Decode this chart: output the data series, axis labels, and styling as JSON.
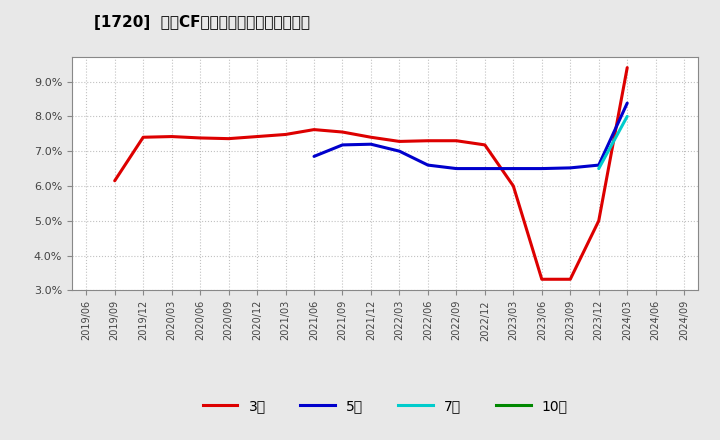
{
  "title": "[1720]  営業CFマージンの標準偏差の推移",
  "ylim": [
    0.03,
    0.097
  ],
  "yticks": [
    0.03,
    0.04,
    0.05,
    0.06,
    0.07,
    0.08,
    0.09
  ],
  "background_color": "#e8e8e8",
  "plot_bg_color": "#ffffff",
  "grid_color": "#999999",
  "series": {
    "3年": {
      "color": "#dd0000",
      "data": [
        [
          "2019/06",
          null
        ],
        [
          "2019/09",
          0.0615
        ],
        [
          "2019/12",
          0.074
        ],
        [
          "2020/03",
          0.0742
        ],
        [
          "2020/06",
          0.0738
        ],
        [
          "2020/09",
          0.0736
        ],
        [
          "2020/12",
          0.0742
        ],
        [
          "2021/03",
          0.0748
        ],
        [
          "2021/06",
          0.0762
        ],
        [
          "2021/09",
          0.0755
        ],
        [
          "2021/12",
          0.074
        ],
        [
          "2022/03",
          0.0728
        ],
        [
          "2022/06",
          0.073
        ],
        [
          "2022/09",
          0.073
        ],
        [
          "2022/12",
          0.0718
        ],
        [
          "2023/03",
          0.06
        ],
        [
          "2023/06",
          0.0332
        ],
        [
          "2023/09",
          0.0332
        ],
        [
          "2023/12",
          0.05
        ],
        [
          "2024/03",
          0.094
        ],
        [
          "2024/06",
          null
        ],
        [
          "2024/09",
          null
        ]
      ]
    },
    "5年": {
      "color": "#0000cc",
      "data": [
        [
          "2019/06",
          null
        ],
        [
          "2019/09",
          null
        ],
        [
          "2019/12",
          null
        ],
        [
          "2020/03",
          null
        ],
        [
          "2020/06",
          null
        ],
        [
          "2020/09",
          null
        ],
        [
          "2020/12",
          null
        ],
        [
          "2021/03",
          null
        ],
        [
          "2021/06",
          0.0685
        ],
        [
          "2021/09",
          0.0718
        ],
        [
          "2021/12",
          0.072
        ],
        [
          "2022/03",
          0.07
        ],
        [
          "2022/06",
          0.066
        ],
        [
          "2022/09",
          0.065
        ],
        [
          "2022/12",
          0.065
        ],
        [
          "2023/03",
          0.065
        ],
        [
          "2023/06",
          0.065
        ],
        [
          "2023/09",
          0.0652
        ],
        [
          "2023/12",
          0.066
        ],
        [
          "2024/03",
          0.0838
        ],
        [
          "2024/06",
          null
        ],
        [
          "2024/09",
          null
        ]
      ]
    },
    "7年": {
      "color": "#00cccc",
      "data": [
        [
          "2019/06",
          null
        ],
        [
          "2019/09",
          null
        ],
        [
          "2019/12",
          null
        ],
        [
          "2020/03",
          null
        ],
        [
          "2020/06",
          null
        ],
        [
          "2020/09",
          null
        ],
        [
          "2020/12",
          null
        ],
        [
          "2021/03",
          null
        ],
        [
          "2021/06",
          null
        ],
        [
          "2021/09",
          null
        ],
        [
          "2021/12",
          null
        ],
        [
          "2022/03",
          null
        ],
        [
          "2022/06",
          null
        ],
        [
          "2022/09",
          null
        ],
        [
          "2022/12",
          null
        ],
        [
          "2023/03",
          null
        ],
        [
          "2023/06",
          null
        ],
        [
          "2023/09",
          null
        ],
        [
          "2023/12",
          0.065
        ],
        [
          "2024/03",
          0.08
        ],
        [
          "2024/06",
          null
        ],
        [
          "2024/09",
          null
        ]
      ]
    },
    "10年": {
      "color": "#008800",
      "data": [
        [
          "2019/06",
          null
        ],
        [
          "2019/09",
          null
        ],
        [
          "2019/12",
          null
        ],
        [
          "2020/03",
          null
        ],
        [
          "2020/06",
          null
        ],
        [
          "2020/09",
          null
        ],
        [
          "2020/12",
          null
        ],
        [
          "2021/03",
          null
        ],
        [
          "2021/06",
          null
        ],
        [
          "2021/09",
          null
        ],
        [
          "2021/12",
          null
        ],
        [
          "2022/03",
          null
        ],
        [
          "2022/06",
          null
        ],
        [
          "2022/09",
          null
        ],
        [
          "2022/12",
          null
        ],
        [
          "2023/03",
          null
        ],
        [
          "2023/06",
          null
        ],
        [
          "2023/09",
          null
        ],
        [
          "2023/12",
          null
        ],
        [
          "2024/03",
          null
        ],
        [
          "2024/06",
          null
        ],
        [
          "2024/09",
          null
        ]
      ]
    }
  },
  "x_labels": [
    "2019/06",
    "2019/09",
    "2019/12",
    "2020/03",
    "2020/06",
    "2020/09",
    "2020/12",
    "2021/03",
    "2021/06",
    "2021/09",
    "2021/12",
    "2022/03",
    "2022/06",
    "2022/09",
    "2022/12",
    "2023/03",
    "2023/06",
    "2023/09",
    "2023/12",
    "2024/03",
    "2024/06",
    "2024/09"
  ],
  "legend_labels": [
    "3年",
    "5年",
    "7年",
    "10年"
  ],
  "legend_colors": [
    "#dd0000",
    "#0000cc",
    "#00cccc",
    "#008800"
  ]
}
